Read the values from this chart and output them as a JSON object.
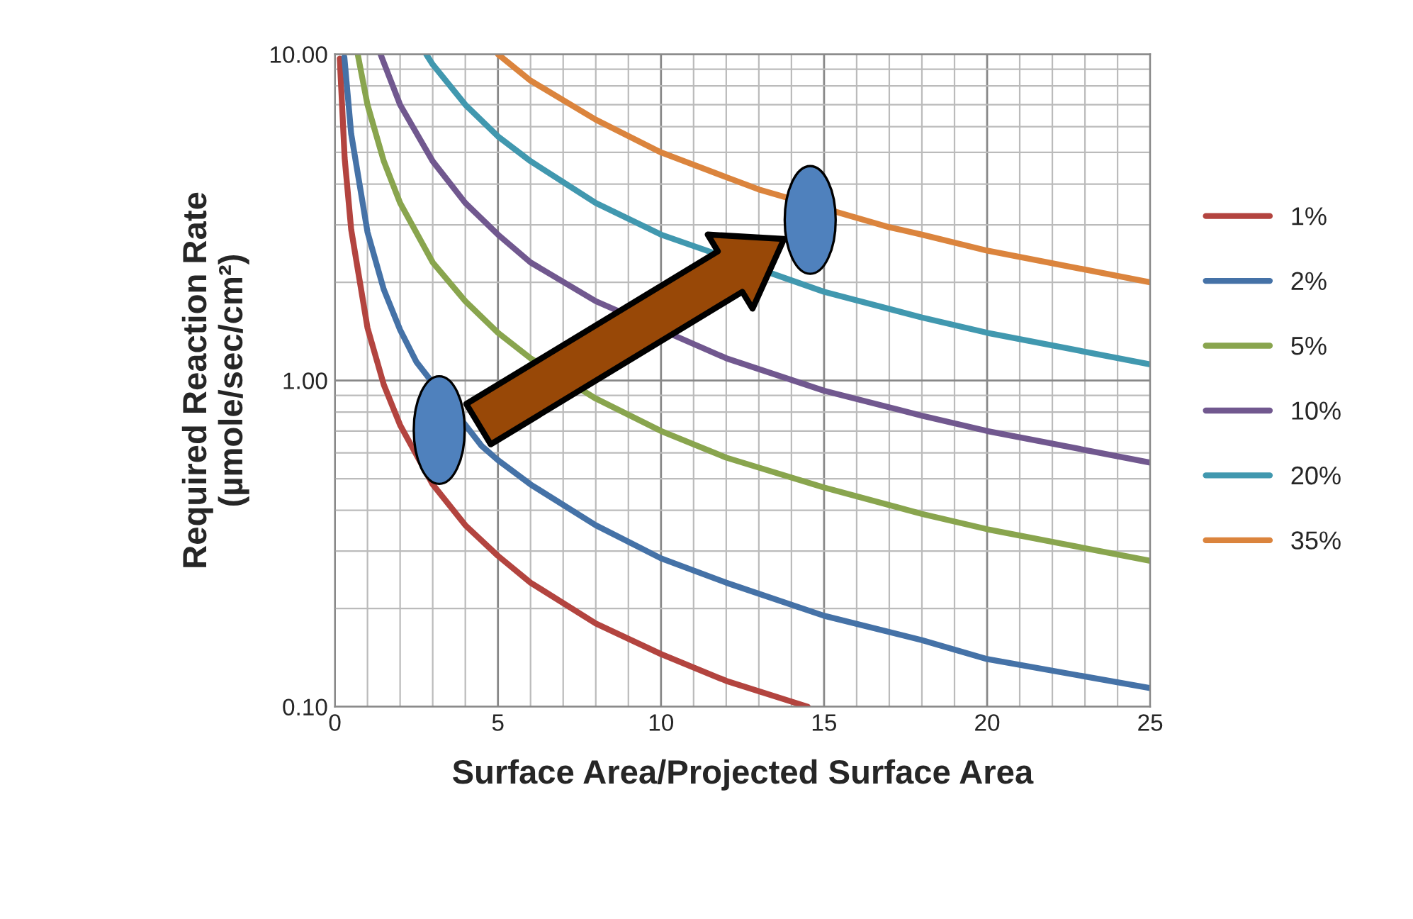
{
  "chart_data": {
    "type": "line",
    "xlabel": "Surface Area/Projected Surface Area",
    "ylabel": "Required Reaction Rate\n(µmole/sec/cm²)",
    "log": "y",
    "grid": true,
    "legend": "right",
    "marker": "none",
    "line_style": "solid",
    "xlim": [
      0,
      25
    ],
    "xticks": [
      0,
      5,
      10,
      15,
      20,
      25
    ],
    "ylim": [
      0.1,
      10
    ],
    "yticks": [
      {
        "value": 0.1,
        "label": "0.10"
      },
      {
        "value": 1,
        "label": "1.00"
      },
      {
        "value": 10,
        "label": "10.00"
      }
    ],
    "series": [
      {
        "name": "1%",
        "color": "#b3443f",
        "x": [
          0.15,
          0.3,
          0.5,
          1,
          1.5,
          2,
          3,
          4,
          5,
          6,
          8,
          10,
          12,
          14.5
        ],
        "values": [
          9.7,
          4.8,
          2.9,
          1.45,
          0.97,
          0.73,
          0.48,
          0.36,
          0.29,
          0.24,
          0.18,
          0.145,
          0.12,
          0.1
        ]
      },
      {
        "name": "2%",
        "color": "#4572a7",
        "x": [
          0.29,
          0.5,
          1,
          1.5,
          2,
          2.5,
          4.5,
          5,
          6,
          8,
          10,
          12,
          15,
          18,
          20,
          25
        ],
        "values": [
          9.8,
          5.7,
          2.85,
          1.9,
          1.43,
          1.14,
          0.63,
          0.57,
          0.48,
          0.36,
          0.285,
          0.24,
          0.19,
          0.16,
          0.14,
          0.114
        ]
      },
      {
        "name": "5%",
        "color": "#89a54e",
        "x": [
          0.7,
          1,
          1.5,
          2,
          3,
          4,
          5,
          6,
          8,
          10,
          12,
          15,
          18,
          20,
          25
        ],
        "values": [
          10,
          7,
          4.7,
          3.5,
          2.3,
          1.75,
          1.4,
          1.17,
          0.88,
          0.7,
          0.58,
          0.47,
          0.39,
          0.35,
          0.28
        ]
      },
      {
        "name": "10%",
        "color": "#71588f",
        "x": [
          1.4,
          2,
          3,
          4,
          5,
          6,
          8,
          12,
          15,
          18,
          20,
          25
        ],
        "values": [
          10,
          7,
          4.7,
          3.5,
          2.8,
          2.3,
          1.75,
          1.17,
          0.93,
          0.78,
          0.7,
          0.56
        ]
      },
      {
        "name": "20%",
        "color": "#4198af",
        "x": [
          2.8,
          3,
          4,
          5,
          6,
          8,
          10,
          15,
          18,
          20,
          25
        ],
        "values": [
          10,
          9.3,
          7,
          5.6,
          4.7,
          3.5,
          2.8,
          1.87,
          1.56,
          1.4,
          1.12
        ]
      },
      {
        "name": "35%",
        "color": "#db843d",
        "x": [
          5,
          6,
          8,
          10,
          12,
          13,
          17,
          18,
          20,
          25
        ],
        "values": [
          10,
          8.3,
          6.3,
          5,
          4.2,
          3.85,
          2.95,
          2.8,
          2.5,
          2.0
        ]
      }
    ]
  }
}
